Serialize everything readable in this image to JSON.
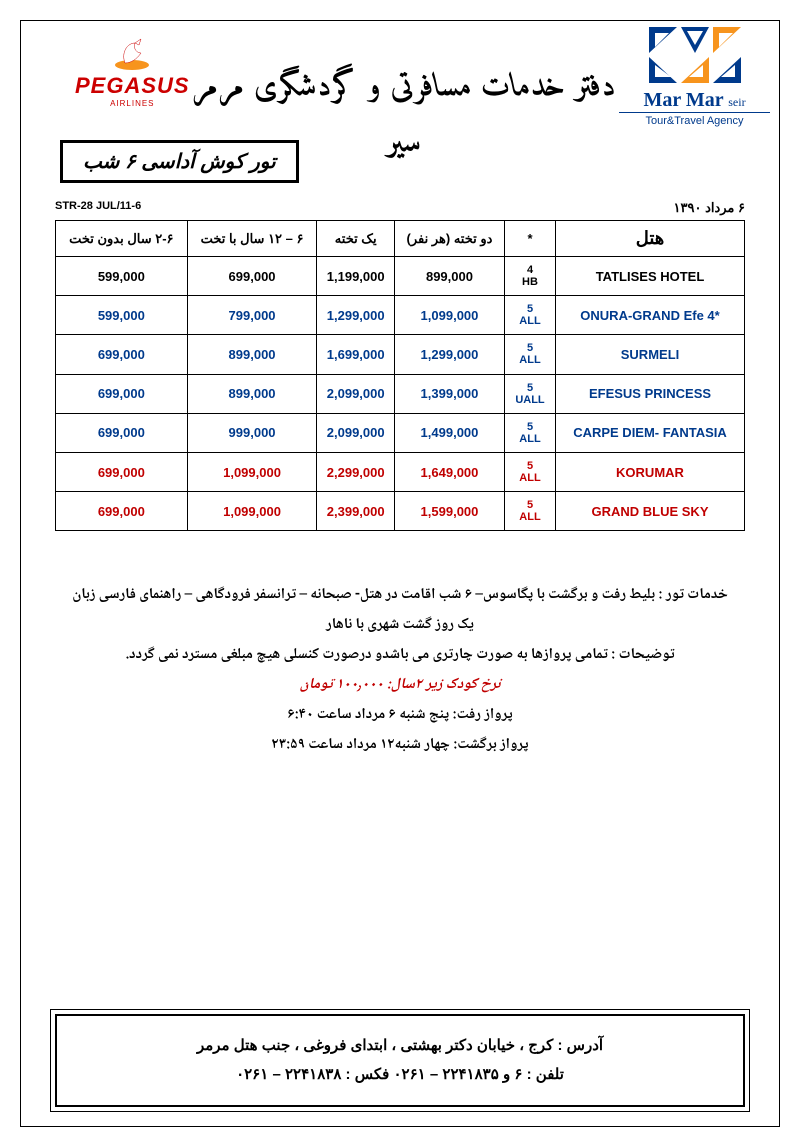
{
  "pegasus": {
    "name": "PEGASUS",
    "sub": "AIRLINES"
  },
  "marmar": {
    "name": "Mar Mar",
    "seir": "seir",
    "sub": "Tour&Travel Agency"
  },
  "header_title_fa": "دفتر خدمات مسافرتی و گردشگری مرمر سیر",
  "tour_box": "تور کوش آداسی ۶ شب",
  "meta": {
    "code": "STR-28 JUL/11-6",
    "date_fa": "۶ مرداد ۱۳۹۰"
  },
  "table": {
    "headers": {
      "c1": "۲-۶ سال بدون  تخت",
      "c2": "۶ – ۱۲ سال با  تخت",
      "c3": "یک تخته",
      "c4": "دو تخته (هر نفر)",
      "c5": "*",
      "c6": "هتل"
    },
    "rows": [
      {
        "color": "black",
        "p": [
          "599,000",
          "699,000",
          "1,199,000",
          "899,000"
        ],
        "star": "4\nHB",
        "hotel": "TATLISES HOTEL"
      },
      {
        "color": "blue",
        "p": [
          "599,000",
          "799,000",
          "1,299,000",
          "1,099,000"
        ],
        "star": "5\nALL",
        "hotel": "ONURA-GRAND Efe 4*"
      },
      {
        "color": "blue",
        "p": [
          "699,000",
          "899,000",
          "1,699,000",
          "1,299,000"
        ],
        "star": "5\nALL",
        "hotel": "SURMELI"
      },
      {
        "color": "blue",
        "p": [
          "699,000",
          "899,000",
          "2,099,000",
          "1,399,000"
        ],
        "star": "5\nUALL",
        "hotel": "EFESUS PRINCESS"
      },
      {
        "color": "blue",
        "p": [
          "699,000",
          "999,000",
          "2,099,000",
          "1,499,000"
        ],
        "star": "5\nALL",
        "hotel": "CARPE DIEM- FANTASIA"
      },
      {
        "color": "red",
        "p": [
          "699,000",
          "1,099,000",
          "2,299,000",
          "1,649,000"
        ],
        "star": "5\nALL",
        "hotel": "KORUMAR"
      },
      {
        "color": "red",
        "p": [
          "699,000",
          "1,099,000",
          "2,399,000",
          "1,599,000"
        ],
        "star": "5\nALL",
        "hotel": "GRAND BLUE SKY"
      }
    ]
  },
  "notes": {
    "l1": "خدمات تور : بلیط رفت و برگشت با پگاسوس– ۶ شب اقامت در هتل- صبحانه – ترانسفر فرودگاهی – راهنمای فارسی زبان",
    "l2": "یک روز گشت شهری با ناهار",
    "l3": "توضیحات : تمامی پروازها به صورت چارتری می باشدو درصورت کنسلی هیچ مبلغی مسترد نمی گردد.",
    "l4": "نرخ کودک زیر ۲سال: ۱۰۰٫۰۰۰ تومان",
    "l5": "پرواز رفت: پنج شنبه ۶ مرداد ساعت ۶:۴۰",
    "l6": "پرواز برگشت: چهار شنبه۱۲ مرداد ساعت ۲۳:۵۹"
  },
  "footer": {
    "l1": "آدرس : کرج ، خیابان دکتر بهشتی ، ابتدای فروغی ، جنب هتل مرمر",
    "l2": "تلفن : ۶ و ۲۲۴۱۸۳۵ – ۰۲۶۱  فکس : ۲۲۴۱۸۳۸ – ۰۲۶۱"
  },
  "colors": {
    "blue": "#003a8c",
    "red": "#c00000",
    "orange": "#f7941d",
    "darkblue": "#003a8c"
  }
}
